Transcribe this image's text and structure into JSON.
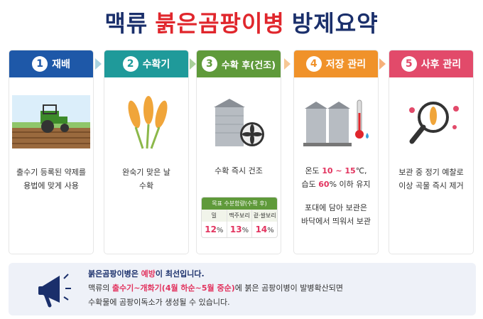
{
  "title": {
    "part1": "맥류",
    "part2": "붉은곰팡이병",
    "part3": "방제요약"
  },
  "colors": {
    "navy": "#1a2f6b",
    "red": "#e0262c",
    "highlight": "#e2345f"
  },
  "steps": [
    {
      "num": "1",
      "label": "재배",
      "color": "#1e58a8",
      "icon": "tractor-field-icon",
      "lines": [
        "출수기 등록된 약제를",
        "용법에 맞게 사용"
      ]
    },
    {
      "num": "2",
      "label": "수확기",
      "color": "#1f9a9a",
      "icon": "wheat-icon",
      "lines": [
        "완숙기 맞은 날",
        "수확"
      ]
    },
    {
      "num": "3",
      "label": "수확 후(건조)",
      "color": "#5f9a3a",
      "icon": "silo-fan-icon",
      "lines": [
        "수확 즉시 건조"
      ],
      "table": {
        "title": "목표 수분함량(수확 후)",
        "headers": [
          "밀",
          "맥주보리",
          "겉·쌀보리"
        ],
        "values": [
          "12",
          "13",
          "14"
        ],
        "unit": "%"
      }
    },
    {
      "num": "4",
      "label": "저장 관리",
      "color": "#f0922a",
      "icon": "silo-thermometer-icon",
      "temp_pre": "온도 ",
      "temp_val": "10 ~ 15",
      "temp_post": "℃,",
      "hum_pre": "습도 ",
      "hum_val": "60",
      "hum_post": "% 이하 유지",
      "lines2": [
        "포대에 담아 보관은",
        "바닥에서 띄워서 보관"
      ]
    },
    {
      "num": "5",
      "label": "사후 관리",
      "color": "#e24a6a",
      "icon": "magnifier-wheat-icon",
      "lines": [
        "보관 중 정기 예찰로",
        "이상 곡물 즉시 제거"
      ]
    }
  ],
  "notice": {
    "icon": "megaphone-icon",
    "l1_a": "붉은곰팡이병은 ",
    "l1_hl": "예방",
    "l1_b": "이 최선입니다.",
    "l2_a": "맥류의 ",
    "l2_hl": "출수기~개화기(4월 하순~5월 중순)",
    "l2_b": "에 붉은 곰팡이병이 발병확산되면",
    "l3": "수확물에 곰팡이독소가 생성될 수 있습니다."
  }
}
